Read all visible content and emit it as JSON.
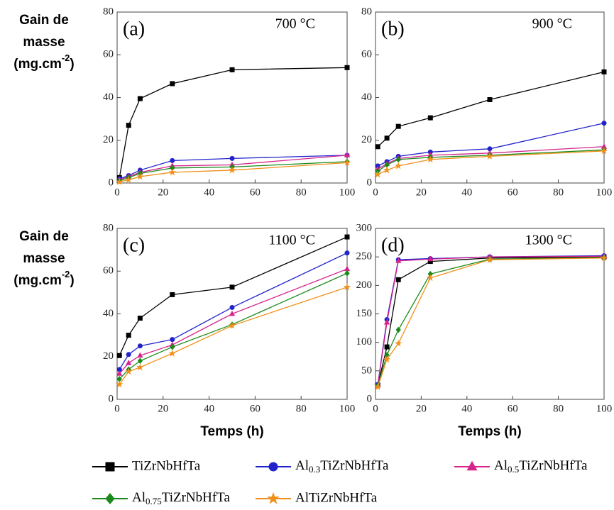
{
  "chart_data": [
    {
      "type": "line",
      "title": "(a)",
      "annotations": [
        "700 °C"
      ],
      "ylabel": {
        "lines": [
          "Gain de",
          "masse"
        ],
        "unit": "(mg.cm",
        "unit_exponent": "-2",
        "unit_end": ")"
      },
      "x": [
        1,
        5,
        10,
        24,
        50,
        100
      ],
      "xlim": [
        0,
        100
      ],
      "xticks": [
        0,
        20,
        40,
        60,
        80,
        100
      ],
      "ylim": [
        0,
        80
      ],
      "yticks": [
        0,
        20,
        40,
        60,
        80
      ],
      "series": [
        {
          "name": "TiZrNbHfTa",
          "color": "#000000",
          "marker": "square",
          "values": [
            2.5,
            27,
            39.5,
            46.5,
            53,
            54
          ]
        },
        {
          "name": "Al0.3TiZrNbHfTa",
          "color": "#2222cc",
          "marker": "circle",
          "values": [
            2,
            3.5,
            6,
            10.5,
            11.5,
            13
          ]
        },
        {
          "name": "Al0.5TiZrNbHfTa",
          "color": "#d6248c",
          "marker": "triangle",
          "values": [
            1.5,
            3,
            5,
            8,
            8.5,
            13
          ]
        },
        {
          "name": "Al0.75TiZrNbHfTa",
          "color": "#1a8a1a",
          "marker": "diamond",
          "values": [
            1,
            2.5,
            4.5,
            7,
            7.5,
            10
          ]
        },
        {
          "name": "AlTiZrNbHfTa",
          "color": "#f0901a",
          "marker": "star",
          "values": [
            0.5,
            1.5,
            3,
            5,
            6,
            9.5
          ]
        }
      ]
    },
    {
      "type": "line",
      "title": "(b)",
      "annotations": [
        "900 °C"
      ],
      "x": [
        1,
        5,
        10,
        24,
        50,
        100
      ],
      "xlim": [
        0,
        100
      ],
      "xticks": [
        0,
        20,
        40,
        60,
        80,
        100
      ],
      "ylim": [
        0,
        80
      ],
      "yticks": [
        0,
        20,
        40,
        60,
        80
      ],
      "series": [
        {
          "name": "TiZrNbHfTa",
          "color": "#000000",
          "marker": "square",
          "values": [
            17,
            21,
            26.5,
            30.5,
            39,
            52
          ]
        },
        {
          "name": "Al0.3TiZrNbHfTa",
          "color": "#2222cc",
          "marker": "circle",
          "values": [
            8,
            10,
            12.5,
            14.5,
            16,
            28
          ]
        },
        {
          "name": "Al0.5TiZrNbHfTa",
          "color": "#d6248c",
          "marker": "triangle",
          "values": [
            6.5,
            9,
            11.5,
            13,
            14,
            17
          ]
        },
        {
          "name": "Al0.75TiZrNbHfTa",
          "color": "#1a8a1a",
          "marker": "diamond",
          "values": [
            5.5,
            8.5,
            11,
            12,
            13,
            15.5
          ]
        },
        {
          "name": "AlTiZrNbHfTa",
          "color": "#f0901a",
          "marker": "star",
          "values": [
            4,
            6,
            8,
            11,
            12.5,
            15
          ]
        }
      ]
    },
    {
      "type": "line",
      "title": "(c)",
      "annotations": [
        "1100 °C"
      ],
      "ylabel": {
        "lines": [
          "Gain de",
          "masse"
        ],
        "unit": "(mg.cm",
        "unit_exponent": "-2",
        "unit_end": ")"
      },
      "xlabel": "Temps (h)",
      "x": [
        1,
        5,
        10,
        24,
        50,
        100
      ],
      "xlim": [
        0,
        100
      ],
      "xticks": [
        0,
        20,
        40,
        60,
        80,
        100
      ],
      "ylim": [
        0,
        80
      ],
      "yticks": [
        0,
        20,
        40,
        60,
        80
      ],
      "series": [
        {
          "name": "TiZrNbHfTa",
          "color": "#000000",
          "marker": "square",
          "values": [
            20.5,
            30,
            38,
            49,
            52.5,
            76
          ]
        },
        {
          "name": "Al0.3TiZrNbHfTa",
          "color": "#2222cc",
          "marker": "circle",
          "values": [
            14,
            21,
            25,
            28,
            43,
            68.5
          ]
        },
        {
          "name": "Al0.5TiZrNbHfTa",
          "color": "#d6248c",
          "marker": "triangle",
          "values": [
            12,
            17,
            20.5,
            25.5,
            40,
            61
          ]
        },
        {
          "name": "Al0.75TiZrNbHfTa",
          "color": "#1a8a1a",
          "marker": "diamond",
          "values": [
            9.5,
            14,
            18,
            24.5,
            35,
            59
          ]
        },
        {
          "name": "AlTiZrNbHfTa",
          "color": "#f0901a",
          "marker": "star",
          "values": [
            7,
            13,
            15,
            21.5,
            34.5,
            52.5
          ]
        }
      ]
    },
    {
      "type": "line",
      "title": "(d)",
      "annotations": [
        "1300 °C"
      ],
      "xlabel": "Temps (h)",
      "x": [
        1,
        5,
        10,
        24,
        50,
        100
      ],
      "xlim": [
        0,
        100
      ],
      "xticks": [
        0,
        20,
        40,
        60,
        80,
        100
      ],
      "ylim": [
        0,
        300
      ],
      "yticks": [
        0,
        50,
        100,
        150,
        200,
        250,
        300
      ],
      "series": [
        {
          "name": "TiZrNbHfTa",
          "color": "#000000",
          "marker": "square",
          "values": [
            25,
            92,
            210,
            242,
            248,
            250
          ]
        },
        {
          "name": "Al0.3TiZrNbHfTa",
          "color": "#2222cc",
          "marker": "circle",
          "values": [
            26,
            140,
            245,
            247,
            250,
            252
          ]
        },
        {
          "name": "Al0.5TiZrNbHfTa",
          "color": "#d6248c",
          "marker": "triangle",
          "values": [
            25,
            135,
            243,
            246,
            250,
            251
          ]
        },
        {
          "name": "Al0.75TiZrNbHfTa",
          "color": "#1a8a1a",
          "marker": "diamond",
          "values": [
            24,
            78,
            122,
            220,
            246,
            249
          ]
        },
        {
          "name": "AlTiZrNbHfTa",
          "color": "#f0901a",
          "marker": "star",
          "values": [
            22,
            70,
            98,
            213,
            245,
            248
          ]
        }
      ]
    }
  ]
}
